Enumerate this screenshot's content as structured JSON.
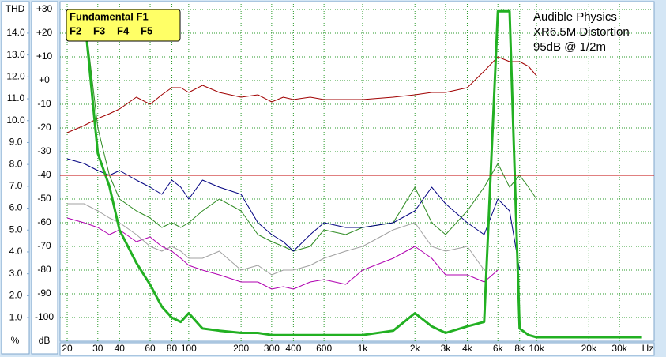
{
  "chart_data": {
    "type": "line",
    "annotation": [
      "Audible Physics",
      "XR6.5M Distortion",
      "95dB @ 1/2m"
    ],
    "y_unit": "dB",
    "y2_label": "THD",
    "y2_unit": "%",
    "x_unit": "Hz",
    "log_x": true,
    "grid": true,
    "grid_color": "#2a9a2a",
    "legend": "upper left",
    "legend_color": "#ffff66",
    "reference_line": {
      "value": -40,
      "color": "#c00000"
    },
    "x": [
      20,
      25,
      30,
      35,
      40,
      50,
      60,
      70,
      80,
      90,
      100,
      120,
      150,
      200,
      250,
      300,
      350,
      400,
      500,
      600,
      800,
      1000,
      1500,
      2000,
      2500,
      3000,
      4000,
      5000,
      6000,
      7000,
      8000,
      9000,
      10000,
      20000,
      40000
    ],
    "xlim": [
      18.2,
      47500
    ],
    "xticks": [
      20,
      30,
      40,
      60,
      80,
      100,
      200,
      300,
      400,
      600,
      {
        "value": 1000,
        "label": "1k"
      },
      {
        "value": 2000,
        "label": "2k"
      },
      {
        "value": 3000,
        "label": "3k"
      },
      {
        "value": 4000,
        "label": "4k"
      },
      {
        "value": 6000,
        "label": "6k"
      },
      {
        "value": 8000,
        "label": "8k"
      },
      {
        "value": 10000,
        "label": "10k"
      },
      {
        "value": 20000,
        "label": "20k"
      },
      {
        "value": 30000,
        "label": "30k"
      }
    ],
    "ylim": [
      -110,
      30
    ],
    "yticks": [
      {
        "value": 30,
        "label": "+30"
      },
      {
        "value": 20,
        "label": "+20"
      },
      {
        "value": 10,
        "label": "+10"
      },
      {
        "value": 0,
        "label": "+0"
      },
      -10,
      -20,
      -30,
      -40,
      -50,
      -60,
      -70,
      -80,
      -90,
      -100
    ],
    "y2lim": [
      -0.08,
      15.08
    ],
    "y2ticks": [
      {
        "value": 14,
        "label": "14.0"
      },
      {
        "value": 13,
        "label": "13.0"
      },
      {
        "value": 12,
        "label": "12.0"
      },
      {
        "value": 11,
        "label": "11.0"
      },
      {
        "value": 10,
        "label": "10.0"
      },
      {
        "value": 9,
        "label": "9.0"
      },
      {
        "value": 8,
        "label": "8.0"
      },
      {
        "value": 7,
        "label": "7.0"
      },
      {
        "value": 6,
        "label": "6.0"
      },
      {
        "value": 5,
        "label": "5.0"
      },
      {
        "value": 4,
        "label": "4.0"
      },
      {
        "value": 3,
        "label": "3.0"
      },
      {
        "value": 2,
        "label": "2.0"
      },
      {
        "value": 1,
        "label": "1.0"
      }
    ],
    "series": [
      {
        "name": "Fundamental F1",
        "color": "#a00000",
        "width": 1,
        "values": [
          -22,
          -19,
          -16,
          -14,
          -12,
          -7,
          -10,
          -6,
          -3,
          -3,
          -5,
          -2,
          -5,
          -7,
          -6,
          -9,
          -7,
          -8,
          -7,
          -8,
          -8,
          -8,
          -7,
          -6,
          -5,
          -5,
          -3,
          4,
          10,
          8,
          8,
          6,
          2,
          null,
          null
        ]
      },
      {
        "name": "F2",
        "color": "#2e8b22",
        "width": 1,
        "values": [
          30,
          30,
          -20,
          -40,
          -50,
          -55,
          -58,
          -62,
          -60,
          -62,
          -60,
          -55,
          -50,
          -55,
          -65,
          -68,
          -70,
          -72,
          -70,
          -63,
          -65,
          -62,
          -60,
          -45,
          -60,
          -65,
          -55,
          -45,
          -35,
          -45,
          -40,
          -45,
          -50,
          null,
          null
        ]
      },
      {
        "name": "F3",
        "color": "#000080",
        "width": 1,
        "values": [
          -33,
          -35,
          -38,
          -40,
          -38,
          -42,
          -45,
          -48,
          -42,
          -45,
          -50,
          -42,
          -45,
          -48,
          -60,
          -65,
          -68,
          -72,
          -65,
          -60,
          -62,
          -62,
          -60,
          -55,
          -45,
          -52,
          -60,
          -65,
          -50,
          -55,
          -80,
          null,
          null,
          null,
          null
        ]
      },
      {
        "name": "F4",
        "color": "#b000b0",
        "width": 1,
        "values": [
          -58,
          -60,
          -62,
          -65,
          -63,
          -68,
          -66,
          -70,
          -72,
          -75,
          -78,
          -80,
          -82,
          -85,
          -85,
          -88,
          -87,
          -88,
          -85,
          -84,
          -86,
          -80,
          -75,
          -70,
          -75,
          -82,
          -82,
          -85,
          -80,
          null,
          null,
          null,
          null,
          null,
          null
        ]
      },
      {
        "name": "F5",
        "color": "#a0a0a0",
        "width": 1,
        "values": [
          -52,
          -52,
          -55,
          -58,
          -60,
          -65,
          -70,
          -72,
          -70,
          -72,
          -75,
          -75,
          -72,
          -80,
          -78,
          -82,
          -80,
          -80,
          -78,
          -75,
          -72,
          -70,
          -63,
          -60,
          -70,
          -72,
          -70,
          -80,
          null,
          null,
          null,
          null,
          null,
          null,
          null
        ]
      },
      {
        "axis": "y2",
        "color": "#22b022",
        "width": 3,
        "values": [
          15,
          15,
          8.5,
          7,
          5,
          3.5,
          2.5,
          1.5,
          1,
          0.8,
          1.2,
          0.5,
          0.4,
          0.3,
          0.3,
          0.2,
          0.2,
          0.2,
          0.2,
          0.2,
          0.2,
          0.2,
          0.4,
          1.2,
          0.6,
          0.3,
          0.6,
          0.8,
          15,
          15,
          0.5,
          0.2,
          0.1,
          0.1,
          0.1
        ]
      }
    ]
  }
}
